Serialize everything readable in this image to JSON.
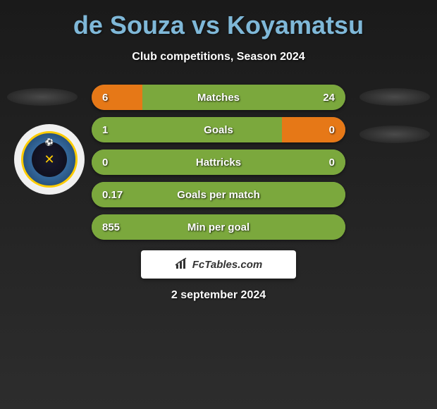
{
  "header": {
    "title": "de Souza vs Koyamatsu",
    "subtitle": "Club competitions, Season 2024"
  },
  "stats": [
    {
      "label": "Matches",
      "left_value": "6",
      "right_value": "24",
      "left_pct": 20,
      "right_pct": 80,
      "left_color": "#e67817",
      "right_color": "#7ba83d",
      "bg_color": "#666666"
    },
    {
      "label": "Goals",
      "left_value": "1",
      "right_value": "0",
      "left_pct": 75,
      "right_pct": 25,
      "left_color": "#7ba83d",
      "right_color": "#e67817",
      "bg_color": "#666666"
    },
    {
      "label": "Hattricks",
      "left_value": "0",
      "right_value": "0",
      "left_pct": 100,
      "right_pct": 0,
      "left_color": "#7ba83d",
      "right_color": "#e67817",
      "bg_color": "#7ba83d"
    },
    {
      "label": "Goals per match",
      "left_value": "0.17",
      "right_value": "",
      "left_pct": 100,
      "right_pct": 0,
      "left_color": "#7ba83d",
      "right_color": "#e67817",
      "bg_color": "#7ba83d"
    },
    {
      "label": "Min per goal",
      "left_value": "855",
      "right_value": "",
      "left_pct": 100,
      "right_pct": 0,
      "left_color": "#7ba83d",
      "right_color": "#e67817",
      "bg_color": "#7ba83d"
    }
  ],
  "attribution": {
    "text": "FcTables.com"
  },
  "footer": {
    "date": "2 september 2024"
  },
  "colors": {
    "title_color": "#7fb8d8",
    "text_color": "#ffffff",
    "bg_gradient_start": "#1a1a1a",
    "bg_gradient_end": "#2d2d2d"
  }
}
